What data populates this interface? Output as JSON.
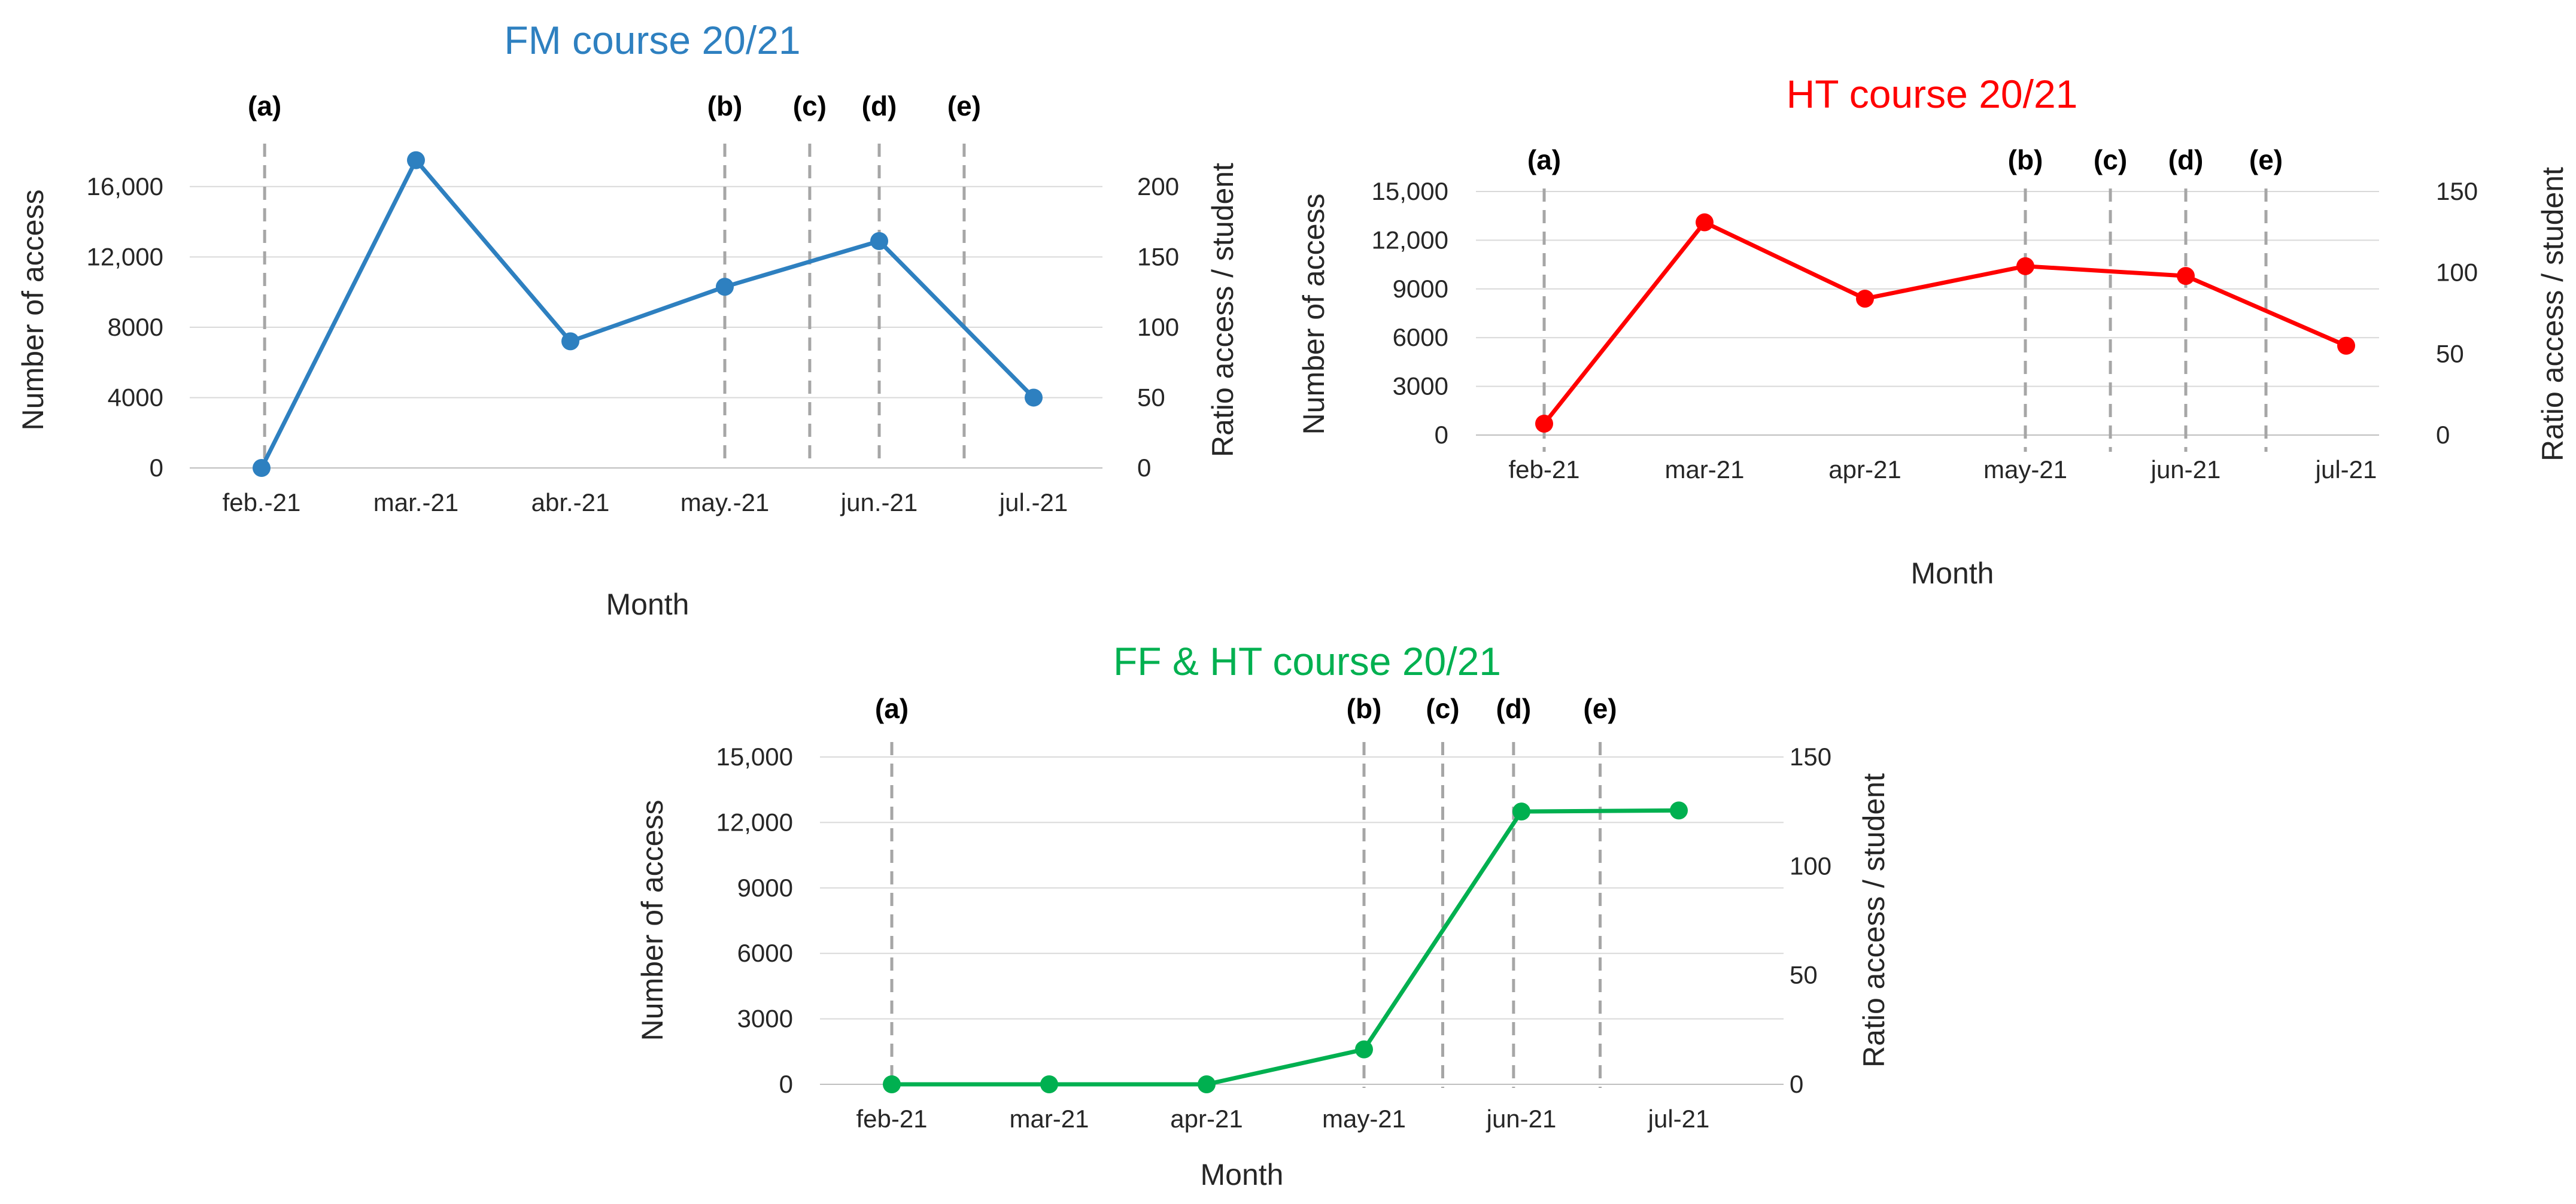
{
  "chart_data": [
    {
      "type": "line",
      "title": "FM course 20/21",
      "xlabel": "Month",
      "ylabel": "Number of access",
      "ylabel_right": "Ratio access / student",
      "categories": [
        "feb.-21",
        "mar.-21",
        "abr.-21",
        "may.-21",
        "jun.-21",
        "jul.-21"
      ],
      "values": [
        0,
        17500,
        7200,
        10300,
        12900,
        4000
      ],
      "ylim": [
        0,
        18000
      ],
      "y_ticks": [
        0,
        4000,
        8000,
        12000,
        16000
      ],
      "y_tick_labels": [
        "0",
        "4000",
        "8000",
        "12,000",
        "16,000"
      ],
      "ylim_right": [
        0,
        225
      ],
      "y2_ticks": [
        0,
        50,
        100,
        150,
        200
      ],
      "y2_tick_labels": [
        "0",
        "50",
        "100",
        "150",
        "200"
      ],
      "events": [
        {
          "label": "(a)",
          "x": 0.02
        },
        {
          "label": "(b)",
          "x": 3.0
        },
        {
          "label": "(c)",
          "x": 3.55
        },
        {
          "label": "(d)",
          "x": 4.0
        },
        {
          "label": "(e)",
          "x": 4.55
        }
      ],
      "color": "#2e80c0"
    },
    {
      "type": "line",
      "title": "HT course 20/21",
      "xlabel": "Month",
      "ylabel": "Number of access",
      "ylabel_right": "Ratio access / student",
      "categories": [
        "feb-21",
        "mar-21",
        "apr-21",
        "may-21",
        "jun-21",
        "jul-21"
      ],
      "values": [
        700,
        13100,
        8400,
        10400,
        9800,
        5500
      ],
      "ylim": [
        0,
        15000
      ],
      "y_ticks": [
        0,
        3000,
        6000,
        9000,
        12000,
        15000
      ],
      "y_tick_labels": [
        "0",
        "3000",
        "6000",
        "9000",
        "12,000",
        "15,000"
      ],
      "ylim_right": [
        0,
        150
      ],
      "y2_ticks": [
        0,
        50,
        100,
        150
      ],
      "y2_tick_labels": [
        "0",
        "50",
        "100",
        "150"
      ],
      "events": [
        {
          "label": "(a)",
          "x": 0.0
        },
        {
          "label": "(b)",
          "x": 3.0
        },
        {
          "label": "(c)",
          "x": 3.53
        },
        {
          "label": "(d)",
          "x": 4.0
        },
        {
          "label": "(e)",
          "x": 4.5
        }
      ],
      "color": "#ff0000"
    },
    {
      "type": "line",
      "title": "FF & HT course 20/21",
      "xlabel": "Month",
      "ylabel": "Number of access",
      "ylabel_right": "Ratio access / student",
      "categories": [
        "feb-21",
        "mar-21",
        "apr-21",
        "may-21",
        "jun-21",
        "jul-21"
      ],
      "values": [
        0,
        0,
        0,
        1600,
        12500,
        12550
      ],
      "ylim": [
        0,
        15000
      ],
      "y_ticks": [
        0,
        3000,
        6000,
        9000,
        12000,
        15000
      ],
      "y_tick_labels": [
        "0",
        "3000",
        "6000",
        "9000",
        "12,000",
        "15,000"
      ],
      "ylim_right": [
        0,
        150
      ],
      "y2_ticks": [
        0,
        50,
        100,
        150
      ],
      "y2_tick_labels": [
        "0",
        "50",
        "100",
        "150"
      ],
      "events": [
        {
          "label": "(a)",
          "x": 0.0
        },
        {
          "label": "(b)",
          "x": 3.0
        },
        {
          "label": "(c)",
          "x": 3.5
        },
        {
          "label": "(d)",
          "x": 3.95
        },
        {
          "label": "(e)",
          "x": 4.5
        }
      ],
      "color": "#00b050"
    }
  ]
}
